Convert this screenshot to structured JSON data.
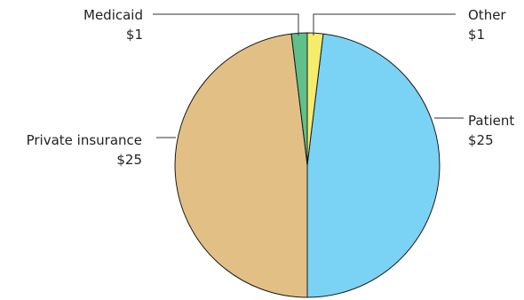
{
  "chart_data": {
    "type": "pie",
    "title": "",
    "currency_prefix": "$",
    "slices": [
      {
        "label": "Patient",
        "value": 25,
        "value_label": "$25",
        "color": "#7ad3f4"
      },
      {
        "label": "Private insurance",
        "value": 25,
        "value_label": "$25",
        "color": "#e2c085"
      },
      {
        "label": "Medicaid",
        "value": 1,
        "value_label": "$1",
        "color": "#5fc08a"
      },
      {
        "label": "Other",
        "value": 1,
        "value_label": "$1",
        "color": "#f5ec6c"
      }
    ],
    "start_angle": "12 o'clock",
    "direction": "clockwise",
    "legend": "none",
    "labels": "outside-with-leader-lines"
  }
}
